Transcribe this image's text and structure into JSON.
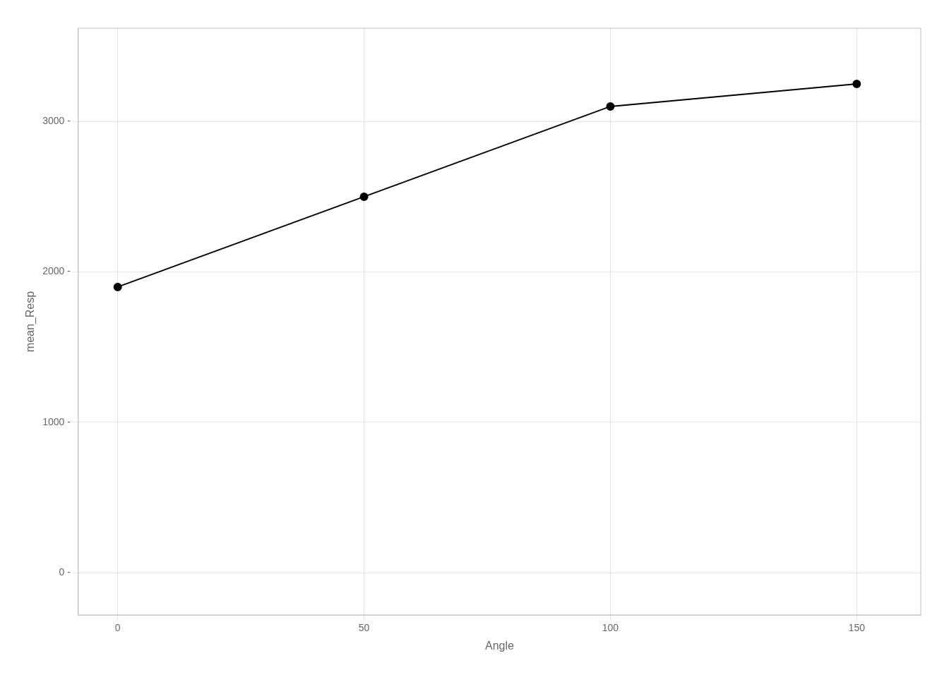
{
  "chart_data": {
    "type": "line",
    "x": [
      0,
      50,
      100,
      150
    ],
    "values": [
      1900,
      2500,
      3100,
      3250
    ],
    "xlabel": "Angle",
    "ylabel": "mean_Resp",
    "xlim": [
      -8,
      163
    ],
    "ylim": [
      -280,
      3620
    ],
    "xticks": [
      0,
      50,
      100,
      150
    ],
    "yticks": [
      {
        "value": 0,
        "label": "0 -"
      },
      {
        "value": 1000,
        "label": "1000 -"
      },
      {
        "value": 2000,
        "label": "2000 -"
      },
      {
        "value": 3000,
        "label": "3000 -"
      }
    ],
    "grid": true,
    "color": "#000000",
    "marker": "circle"
  }
}
